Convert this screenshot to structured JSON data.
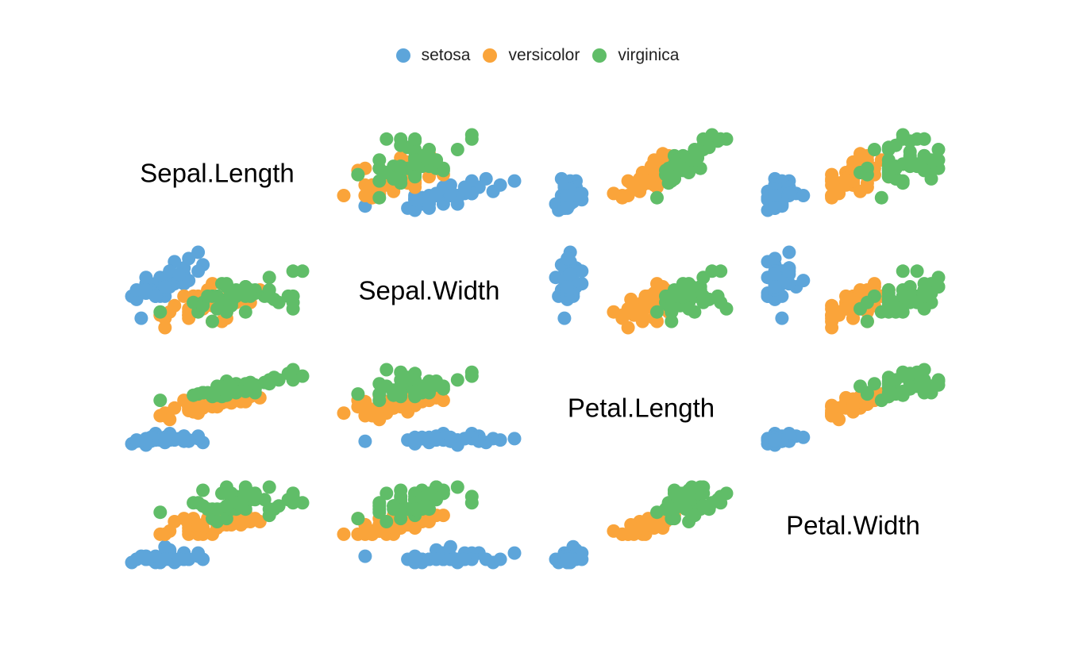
{
  "chart_data": {
    "type": "scatter",
    "variant": "scatterplot-matrix",
    "variables": [
      "Sepal.Length",
      "Sepal.Width",
      "Petal.Length",
      "Petal.Width"
    ],
    "legend": {
      "position": "top",
      "entries": [
        {
          "name": "setosa",
          "color": "#5DA5DA"
        },
        {
          "name": "versicolor",
          "color": "#FAA43A"
        },
        {
          "name": "virginica",
          "color": "#60BD68"
        }
      ]
    },
    "ranges": {
      "Sepal.Length": [
        4.3,
        7.9
      ],
      "Sepal.Width": [
        2.0,
        4.4
      ],
      "Petal.Length": [
        1.0,
        6.9
      ],
      "Petal.Width": [
        0.1,
        2.5
      ]
    },
    "grid": false,
    "axes_shown": false,
    "series": [
      {
        "name": "setosa",
        "points": [
          [
            5.1,
            3.5,
            1.4,
            0.2
          ],
          [
            4.9,
            3.0,
            1.4,
            0.2
          ],
          [
            4.7,
            3.2,
            1.3,
            0.2
          ],
          [
            4.6,
            3.1,
            1.5,
            0.2
          ],
          [
            5.0,
            3.6,
            1.4,
            0.2
          ],
          [
            5.4,
            3.9,
            1.7,
            0.4
          ],
          [
            4.6,
            3.4,
            1.4,
            0.3
          ],
          [
            5.0,
            3.4,
            1.5,
            0.2
          ],
          [
            4.4,
            2.9,
            1.4,
            0.2
          ],
          [
            4.9,
            3.1,
            1.5,
            0.1
          ],
          [
            5.4,
            3.7,
            1.5,
            0.2
          ],
          [
            4.8,
            3.4,
            1.6,
            0.2
          ],
          [
            4.8,
            3.0,
            1.4,
            0.1
          ],
          [
            4.3,
            3.0,
            1.1,
            0.1
          ],
          [
            5.8,
            4.0,
            1.2,
            0.2
          ],
          [
            5.7,
            4.4,
            1.5,
            0.4
          ],
          [
            5.4,
            3.9,
            1.3,
            0.4
          ],
          [
            5.1,
            3.5,
            1.4,
            0.3
          ],
          [
            5.7,
            3.8,
            1.7,
            0.3
          ],
          [
            5.1,
            3.8,
            1.5,
            0.3
          ],
          [
            5.4,
            3.4,
            1.7,
            0.2
          ],
          [
            5.1,
            3.7,
            1.5,
            0.4
          ],
          [
            4.6,
            3.6,
            1.0,
            0.2
          ],
          [
            5.1,
            3.3,
            1.7,
            0.5
          ],
          [
            4.8,
            3.4,
            1.9,
            0.2
          ],
          [
            5.0,
            3.0,
            1.6,
            0.2
          ],
          [
            5.0,
            3.4,
            1.6,
            0.4
          ],
          [
            5.2,
            3.5,
            1.5,
            0.2
          ],
          [
            5.2,
            3.4,
            1.4,
            0.2
          ],
          [
            4.7,
            3.2,
            1.6,
            0.2
          ],
          [
            4.8,
            3.1,
            1.6,
            0.2
          ],
          [
            5.4,
            3.4,
            1.5,
            0.4
          ],
          [
            5.2,
            4.1,
            1.5,
            0.1
          ],
          [
            5.5,
            4.2,
            1.4,
            0.2
          ],
          [
            4.9,
            3.1,
            1.5,
            0.2
          ],
          [
            5.0,
            3.2,
            1.2,
            0.2
          ],
          [
            5.5,
            3.5,
            1.3,
            0.2
          ],
          [
            4.9,
            3.6,
            1.4,
            0.1
          ],
          [
            4.4,
            3.0,
            1.3,
            0.2
          ],
          [
            5.1,
            3.4,
            1.5,
            0.2
          ],
          [
            5.0,
            3.5,
            1.3,
            0.3
          ],
          [
            4.5,
            2.3,
            1.3,
            0.3
          ],
          [
            4.4,
            3.2,
            1.3,
            0.2
          ],
          [
            5.0,
            3.5,
            1.6,
            0.6
          ],
          [
            5.1,
            3.8,
            1.9,
            0.4
          ],
          [
            4.8,
            3.0,
            1.4,
            0.3
          ],
          [
            5.1,
            3.8,
            1.6,
            0.2
          ],
          [
            4.6,
            3.2,
            1.4,
            0.2
          ],
          [
            5.3,
            3.7,
            1.5,
            0.2
          ],
          [
            5.0,
            3.3,
            1.4,
            0.2
          ]
        ]
      },
      {
        "name": "versicolor",
        "points": [
          [
            7.0,
            3.2,
            4.7,
            1.4
          ],
          [
            6.4,
            3.2,
            4.5,
            1.5
          ],
          [
            6.9,
            3.1,
            4.9,
            1.5
          ],
          [
            5.5,
            2.3,
            4.0,
            1.3
          ],
          [
            6.5,
            2.8,
            4.6,
            1.5
          ],
          [
            5.7,
            2.8,
            4.5,
            1.3
          ],
          [
            6.3,
            3.3,
            4.7,
            1.6
          ],
          [
            4.9,
            2.4,
            3.3,
            1.0
          ],
          [
            6.6,
            2.9,
            4.6,
            1.3
          ],
          [
            5.2,
            2.7,
            3.9,
            1.4
          ],
          [
            5.0,
            2.0,
            3.5,
            1.0
          ],
          [
            5.9,
            3.0,
            4.2,
            1.5
          ],
          [
            6.0,
            2.2,
            4.0,
            1.0
          ],
          [
            6.1,
            2.9,
            4.7,
            1.4
          ],
          [
            5.6,
            2.9,
            3.6,
            1.3
          ],
          [
            6.7,
            3.1,
            4.4,
            1.4
          ],
          [
            5.6,
            3.0,
            4.5,
            1.5
          ],
          [
            5.8,
            2.7,
            4.1,
            1.0
          ],
          [
            6.2,
            2.2,
            4.5,
            1.5
          ],
          [
            5.6,
            2.5,
            3.9,
            1.1
          ],
          [
            5.9,
            3.2,
            4.8,
            1.8
          ],
          [
            6.1,
            2.8,
            4.0,
            1.3
          ],
          [
            6.3,
            2.5,
            4.9,
            1.5
          ],
          [
            6.1,
            2.8,
            4.7,
            1.2
          ],
          [
            6.4,
            2.9,
            4.3,
            1.3
          ],
          [
            6.6,
            3.0,
            4.4,
            1.4
          ],
          [
            6.8,
            2.8,
            4.8,
            1.4
          ],
          [
            6.7,
            3.0,
            5.0,
            1.7
          ],
          [
            6.0,
            2.9,
            4.5,
            1.5
          ],
          [
            5.7,
            2.6,
            3.5,
            1.0
          ],
          [
            5.5,
            2.4,
            3.8,
            1.1
          ],
          [
            5.5,
            2.4,
            3.7,
            1.0
          ],
          [
            5.8,
            2.7,
            3.9,
            1.2
          ],
          [
            6.0,
            2.7,
            5.1,
            1.6
          ],
          [
            5.4,
            3.0,
            4.5,
            1.5
          ],
          [
            6.0,
            3.4,
            4.5,
            1.6
          ],
          [
            6.7,
            3.1,
            4.7,
            1.5
          ],
          [
            6.3,
            2.3,
            4.4,
            1.3
          ],
          [
            5.6,
            3.0,
            4.1,
            1.3
          ],
          [
            5.5,
            2.5,
            4.0,
            1.3
          ],
          [
            5.5,
            2.6,
            4.4,
            1.2
          ],
          [
            6.1,
            3.0,
            4.6,
            1.4
          ],
          [
            5.8,
            2.6,
            4.0,
            1.2
          ],
          [
            5.0,
            2.3,
            3.3,
            1.0
          ],
          [
            5.6,
            2.7,
            4.2,
            1.3
          ],
          [
            5.7,
            3.0,
            4.2,
            1.2
          ],
          [
            5.7,
            2.9,
            4.2,
            1.3
          ],
          [
            6.2,
            2.9,
            4.3,
            1.3
          ],
          [
            5.1,
            2.5,
            3.0,
            1.1
          ],
          [
            5.7,
            2.8,
            4.1,
            1.3
          ]
        ]
      },
      {
        "name": "virginica",
        "points": [
          [
            6.3,
            3.3,
            6.0,
            2.5
          ],
          [
            5.8,
            2.7,
            5.1,
            1.9
          ],
          [
            7.1,
            3.0,
            5.9,
            2.1
          ],
          [
            6.3,
            2.9,
            5.6,
            1.8
          ],
          [
            6.5,
            3.0,
            5.8,
            2.2
          ],
          [
            7.6,
            3.0,
            6.6,
            2.1
          ],
          [
            4.9,
            2.5,
            4.5,
            1.7
          ],
          [
            7.3,
            2.9,
            6.3,
            1.8
          ],
          [
            6.7,
            2.5,
            5.8,
            1.8
          ],
          [
            7.2,
            3.6,
            6.1,
            2.5
          ],
          [
            6.5,
            3.2,
            5.1,
            2.0
          ],
          [
            6.4,
            2.7,
            5.3,
            1.9
          ],
          [
            6.8,
            3.0,
            5.5,
            2.1
          ],
          [
            5.7,
            2.5,
            5.0,
            2.0
          ],
          [
            5.8,
            2.8,
            5.1,
            2.4
          ],
          [
            6.4,
            3.2,
            5.3,
            2.3
          ],
          [
            6.5,
            3.0,
            5.5,
            1.8
          ],
          [
            7.7,
            3.8,
            6.7,
            2.2
          ],
          [
            7.7,
            2.6,
            6.9,
            2.3
          ],
          [
            6.0,
            2.2,
            5.0,
            1.5
          ],
          [
            6.9,
            3.2,
            5.7,
            2.3
          ],
          [
            5.6,
            2.8,
            4.9,
            2.0
          ],
          [
            7.7,
            2.8,
            6.7,
            2.0
          ],
          [
            6.3,
            2.7,
            4.9,
            1.8
          ],
          [
            6.7,
            3.3,
            5.7,
            2.1
          ],
          [
            7.2,
            3.2,
            6.0,
            1.8
          ],
          [
            6.2,
            2.8,
            4.8,
            1.8
          ],
          [
            6.1,
            3.0,
            4.9,
            1.8
          ],
          [
            6.4,
            2.8,
            5.6,
            2.1
          ],
          [
            7.2,
            3.0,
            5.8,
            1.6
          ],
          [
            7.4,
            2.8,
            6.1,
            1.9
          ],
          [
            7.9,
            3.8,
            6.4,
            2.0
          ],
          [
            6.4,
            2.8,
            5.6,
            2.2
          ],
          [
            6.3,
            2.8,
            5.1,
            1.5
          ],
          [
            6.1,
            2.6,
            5.6,
            1.4
          ],
          [
            7.7,
            3.0,
            6.1,
            2.3
          ],
          [
            6.3,
            3.4,
            5.6,
            2.4
          ],
          [
            6.4,
            3.1,
            5.5,
            1.8
          ],
          [
            6.0,
            3.0,
            4.8,
            1.8
          ],
          [
            6.9,
            3.1,
            5.4,
            2.1
          ],
          [
            6.7,
            3.1,
            5.6,
            2.4
          ],
          [
            6.9,
            3.1,
            5.1,
            2.3
          ],
          [
            5.8,
            2.7,
            5.1,
            1.9
          ],
          [
            6.8,
            3.2,
            5.9,
            2.3
          ],
          [
            6.7,
            3.3,
            5.7,
            2.5
          ],
          [
            6.7,
            3.0,
            5.2,
            2.3
          ],
          [
            6.3,
            2.5,
            5.0,
            1.9
          ],
          [
            6.5,
            3.0,
            5.2,
            2.0
          ],
          [
            6.2,
            3.4,
            5.4,
            2.3
          ],
          [
            5.9,
            3.0,
            5.1,
            1.8
          ]
        ]
      }
    ]
  }
}
